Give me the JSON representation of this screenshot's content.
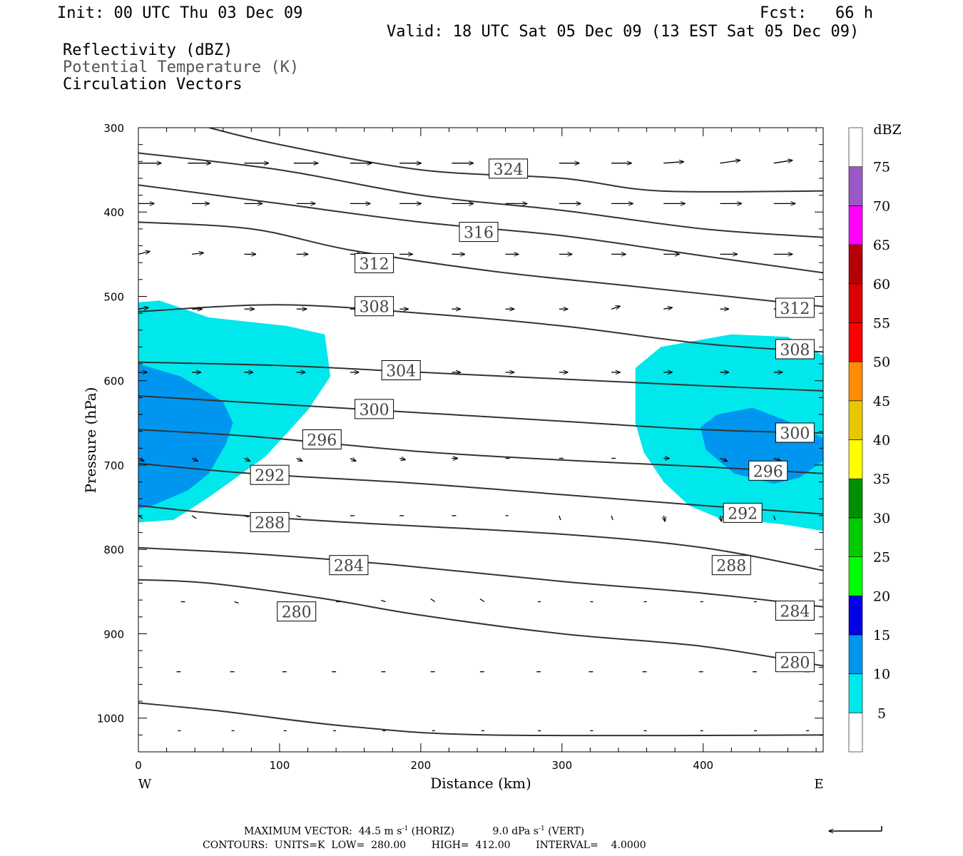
{
  "header": {
    "init": "Init: 00 UTC Thu 03 Dec 09",
    "fcst": "Fcst:   66 h",
    "valid": "Valid: 18 UTC Sat 05 Dec 09 (13 EST Sat 05 Dec 09)",
    "field1": "Reflectivity (dBZ)",
    "field2": "Potential Temperature (K)",
    "field3": "Circulation Vectors"
  },
  "footer": {
    "max_vector_label": "MAXIMUM VECTOR:",
    "horiz_value": "44.5 m s",
    "horiz_exp": "-1",
    "horiz_tag": "(HORIZ)",
    "vert_value": "9.0 dPa s",
    "vert_exp": "-1",
    "vert_tag": "(VERT)",
    "contours_line": "CONTOURS:  UNITS=K  LOW=  280.00        HIGH=  412.00        INTERVAL=    4.0000"
  },
  "colors": {
    "contour": "#333333",
    "refl_5": "#00e8ec",
    "refl_10": "#0096f0",
    "vector": "#000000"
  },
  "chart_data": {
    "type": "contour",
    "xlabel": "Distance (km)",
    "ylabel": "Pressure (hPa)",
    "xlim": [
      0,
      485
    ],
    "ylim": [
      1040,
      300
    ],
    "x_ticks": [
      0,
      100,
      200,
      300,
      400
    ],
    "y_ticks": [
      300,
      400,
      500,
      600,
      700,
      800,
      900,
      1000
    ],
    "x_end_labels": {
      "left": "W",
      "right": "E"
    },
    "colorbar": {
      "unit": "dBZ",
      "levels": [
        5,
        10,
        15,
        20,
        25,
        30,
        35,
        40,
        45,
        50,
        55,
        60,
        65,
        70,
        75
      ],
      "colors": [
        "#00e8ec",
        "#0096f0",
        "#0000e6",
        "#00ff00",
        "#00cc00",
        "#008f00",
        "#ffff00",
        "#e6c800",
        "#ff8c00",
        "#ff0000",
        "#dc0000",
        "#b40000",
        "#ff00ff",
        "#9b59c8"
      ]
    },
    "reflectivity_regions": [
      {
        "level": 5,
        "points": [
          [
            0,
            507
          ],
          [
            15,
            505
          ],
          [
            50,
            525
          ],
          [
            105,
            535
          ],
          [
            132,
            545
          ],
          [
            136,
            595
          ],
          [
            120,
            635
          ],
          [
            90,
            690
          ],
          [
            50,
            738
          ],
          [
            25,
            765
          ],
          [
            0,
            768
          ]
        ]
      },
      {
        "level": 5,
        "points": [
          [
            352,
            585
          ],
          [
            370,
            560
          ],
          [
            420,
            545
          ],
          [
            460,
            548
          ],
          [
            485,
            570
          ],
          [
            485,
            778
          ],
          [
            455,
            770
          ],
          [
            410,
            762
          ],
          [
            390,
            748
          ],
          [
            372,
            720
          ],
          [
            358,
            685
          ],
          [
            352,
            650
          ]
        ]
      },
      {
        "level": 10,
        "points": [
          [
            0,
            580
          ],
          [
            30,
            595
          ],
          [
            60,
            625
          ],
          [
            67,
            650
          ],
          [
            62,
            675
          ],
          [
            50,
            710
          ],
          [
            35,
            730
          ],
          [
            10,
            748
          ],
          [
            0,
            752
          ]
        ]
      },
      {
        "level": 10,
        "points": [
          [
            398,
            655
          ],
          [
            410,
            640
          ],
          [
            435,
            632
          ],
          [
            460,
            648
          ],
          [
            485,
            668
          ],
          [
            485,
            695
          ],
          [
            468,
            715
          ],
          [
            450,
            722
          ],
          [
            422,
            710
          ],
          [
            402,
            682
          ]
        ]
      }
    ],
    "theta_contours": [
      {
        "value": 280,
        "points": [
          [
            0,
            982
          ],
          [
            60,
            992
          ],
          [
            150,
            1010
          ],
          [
            250,
            1020
          ],
          [
            485,
            1020
          ]
        ]
      },
      {
        "value": 280,
        "points": [
          [
            0,
            836
          ],
          [
            50,
            840
          ],
          [
            130,
            858
          ],
          [
            200,
            878
          ],
          [
            300,
            900
          ],
          [
            400,
            915
          ],
          [
            485,
            938
          ]
        ]
      },
      {
        "value": 284,
        "points": [
          [
            0,
            798
          ],
          [
            80,
            805
          ],
          [
            180,
            818
          ],
          [
            300,
            838
          ],
          [
            400,
            852
          ],
          [
            485,
            868
          ]
        ]
      },
      {
        "value": 288,
        "points": [
          [
            0,
            748
          ],
          [
            60,
            758
          ],
          [
            150,
            768
          ],
          [
            300,
            782
          ],
          [
            400,
            798
          ],
          [
            485,
            825
          ]
        ]
      },
      {
        "value": 292,
        "points": [
          [
            0,
            698
          ],
          [
            80,
            710
          ],
          [
            200,
            722
          ],
          [
            300,
            735
          ],
          [
            400,
            748
          ],
          [
            485,
            758
          ]
        ]
      },
      {
        "value": 296,
        "points": [
          [
            0,
            658
          ],
          [
            80,
            666
          ],
          [
            200,
            684
          ],
          [
            300,
            694
          ],
          [
            400,
            702
          ],
          [
            485,
            710
          ]
        ]
      },
      {
        "value": 300,
        "points": [
          [
            0,
            618
          ],
          [
            100,
            628
          ],
          [
            200,
            638
          ],
          [
            300,
            648
          ],
          [
            400,
            658
          ],
          [
            485,
            662
          ]
        ]
      },
      {
        "value": 304,
        "points": [
          [
            0,
            578
          ],
          [
            100,
            582
          ],
          [
            200,
            590
          ],
          [
            300,
            598
          ],
          [
            400,
            606
          ],
          [
            485,
            612
          ]
        ]
      },
      {
        "value": 308,
        "points": [
          [
            0,
            518
          ],
          [
            100,
            510
          ],
          [
            200,
            520
          ],
          [
            300,
            535
          ],
          [
            400,
            556
          ],
          [
            485,
            566
          ]
        ]
      },
      {
        "value": 312,
        "points": [
          [
            0,
            412
          ],
          [
            80,
            420
          ],
          [
            150,
            445
          ],
          [
            250,
            470
          ],
          [
            350,
            488
          ],
          [
            485,
            512
          ]
        ]
      },
      {
        "value": 316,
        "points": [
          [
            0,
            368
          ],
          [
            100,
            390
          ],
          [
            200,
            412
          ],
          [
            300,
            428
          ],
          [
            400,
            452
          ],
          [
            485,
            472
          ]
        ]
      },
      {
        "value": 320,
        "points": [
          [
            0,
            330
          ],
          [
            100,
            350
          ],
          [
            200,
            380
          ],
          [
            300,
            398
          ],
          [
            400,
            420
          ],
          [
            485,
            430
          ]
        ]
      },
      {
        "value": 324,
        "points": [
          [
            50,
            300
          ],
          [
            100,
            320
          ],
          [
            200,
            350
          ],
          [
            300,
            360
          ],
          [
            370,
            375
          ],
          [
            485,
            375
          ]
        ]
      }
    ],
    "theta_labels": [
      {
        "text": "324",
        "x": 262,
        "p": 349
      },
      {
        "text": "316",
        "x": 241,
        "p": 424
      },
      {
        "text": "312",
        "x": 167,
        "p": 461
      },
      {
        "text": "312",
        "x": 465,
        "p": 514
      },
      {
        "text": "308",
        "x": 167,
        "p": 512
      },
      {
        "text": "308",
        "x": 465,
        "p": 563
      },
      {
        "text": "304",
        "x": 186,
        "p": 588
      },
      {
        "text": "300",
        "x": 167,
        "p": 634
      },
      {
        "text": "300",
        "x": 465,
        "p": 662
      },
      {
        "text": "296",
        "x": 130,
        "p": 670
      },
      {
        "text": "296",
        "x": 446,
        "p": 707
      },
      {
        "text": "292",
        "x": 93,
        "p": 712
      },
      {
        "text": "292",
        "x": 428,
        "p": 757
      },
      {
        "text": "288",
        "x": 93,
        "p": 768
      },
      {
        "text": "288",
        "x": 420,
        "p": 819
      },
      {
        "text": "284",
        "x": 149,
        "p": 819
      },
      {
        "text": "284",
        "x": 465,
        "p": 873
      },
      {
        "text": "280",
        "x": 112,
        "p": 874
      },
      {
        "text": "280",
        "x": 465,
        "p": 934
      }
    ],
    "vectors": [
      {
        "p": 342,
        "xs": [
          0,
          35,
          75,
          110,
          150,
          185,
          222,
          260,
          298,
          335,
          372,
          412,
          450
        ],
        "dx": [
          32,
          32,
          34,
          34,
          30,
          30,
          30,
          30,
          28,
          28,
          28,
          28,
          26
        ],
        "dp": [
          0,
          0,
          0,
          0,
          0,
          0,
          0,
          0,
          0,
          0,
          -2,
          -4,
          -4
        ]
      },
      {
        "p": 390,
        "xs": [
          0,
          38,
          75,
          112,
          150,
          185,
          222,
          260,
          298,
          335,
          372,
          412,
          450
        ],
        "dx": [
          22,
          24,
          25,
          26,
          28,
          30,
          30,
          30,
          30,
          30,
          30,
          30,
          30
        ],
        "dp": [
          0,
          0,
          0,
          0,
          0,
          0,
          0,
          0,
          0,
          0,
          0,
          0,
          0
        ]
      },
      {
        "p": 450,
        "xs": [
          0,
          38,
          75,
          112,
          150,
          185,
          222,
          260,
          298,
          335,
          372,
          412,
          450
        ],
        "dx": [
          16,
          16,
          16,
          16,
          16,
          18,
          18,
          18,
          18,
          20,
          22,
          24,
          26
        ],
        "dp": [
          -4,
          -2,
          0,
          0,
          0,
          0,
          0,
          0,
          0,
          0,
          0,
          0,
          0
        ]
      },
      {
        "p": 515,
        "xs": [
          0,
          38,
          75,
          112,
          150,
          185,
          222,
          260,
          298,
          335,
          372,
          412,
          450
        ],
        "dx": [
          14,
          14,
          14,
          14,
          12,
          12,
          12,
          12,
          12,
          12,
          12,
          12,
          12
        ],
        "dp": [
          -2,
          0,
          0,
          0,
          0,
          0,
          0,
          0,
          0,
          -4,
          -2,
          0,
          0
        ]
      },
      {
        "p": 590,
        "xs": [
          0,
          38,
          75,
          112,
          150,
          185,
          222,
          260,
          298,
          335,
          372,
          412,
          450
        ],
        "dx": [
          12,
          12,
          12,
          12,
          12,
          12,
          12,
          12,
          12,
          12,
          12,
          12,
          12
        ],
        "dp": [
          0,
          0,
          0,
          0,
          0,
          0,
          0,
          0,
          0,
          0,
          0,
          0,
          0
        ]
      },
      {
        "p": 692,
        "xs": [
          0,
          38,
          75,
          112,
          150,
          185,
          222,
          260,
          298,
          335,
          372,
          412,
          450
        ],
        "dx": [
          8,
          8,
          8,
          8,
          8,
          8,
          8,
          6,
          6,
          6,
          8,
          10,
          10
        ],
        "dp": [
          4,
          4,
          4,
          4,
          4,
          2,
          0,
          0,
          0,
          0,
          0,
          4,
          4
        ]
      },
      {
        "p": 760,
        "xs": [
          0,
          38,
          75,
          112,
          150,
          185,
          222,
          260,
          298,
          335,
          372,
          412,
          450
        ],
        "dx": [
          6,
          6,
          6,
          6,
          6,
          6,
          6,
          4,
          2,
          2,
          2,
          2,
          2
        ],
        "dp": [
          4,
          4,
          2,
          2,
          0,
          0,
          0,
          0,
          6,
          6,
          8,
          8,
          6
        ]
      },
      {
        "p": 862,
        "xs": [
          30,
          68,
          105,
          140,
          175,
          210,
          245,
          285,
          322,
          360,
          400,
          438,
          475
        ],
        "dx": [
          6,
          6,
          6,
          6,
          -6,
          -6,
          -6,
          -4,
          -4,
          -4,
          -4,
          -4,
          -4
        ],
        "dp": [
          0,
          2,
          2,
          0,
          -2,
          -4,
          -4,
          0,
          0,
          0,
          0,
          0,
          0
        ]
      },
      {
        "p": 945,
        "xs": [
          30,
          68,
          105,
          140,
          175,
          210,
          245,
          285,
          322,
          360,
          400,
          438,
          475
        ],
        "dx": [
          -6,
          -6,
          -6,
          -6,
          -6,
          -6,
          -6,
          -6,
          -6,
          -6,
          -6,
          -6,
          -6
        ],
        "dp": [
          0,
          0,
          0,
          0,
          0,
          0,
          0,
          0,
          0,
          0,
          0,
          0,
          0
        ]
      },
      {
        "p": 1015,
        "xs": [
          30,
          68,
          105,
          140,
          175,
          210,
          245,
          285,
          322,
          360,
          400,
          438,
          475
        ],
        "dx": [
          -4,
          -4,
          -4,
          -4,
          -4,
          -4,
          -4,
          -4,
          -4,
          -4,
          -4,
          -4,
          -4
        ],
        "dp": [
          0,
          0,
          0,
          0,
          0,
          0,
          0,
          0,
          0,
          0,
          0,
          0,
          0
        ]
      }
    ]
  }
}
